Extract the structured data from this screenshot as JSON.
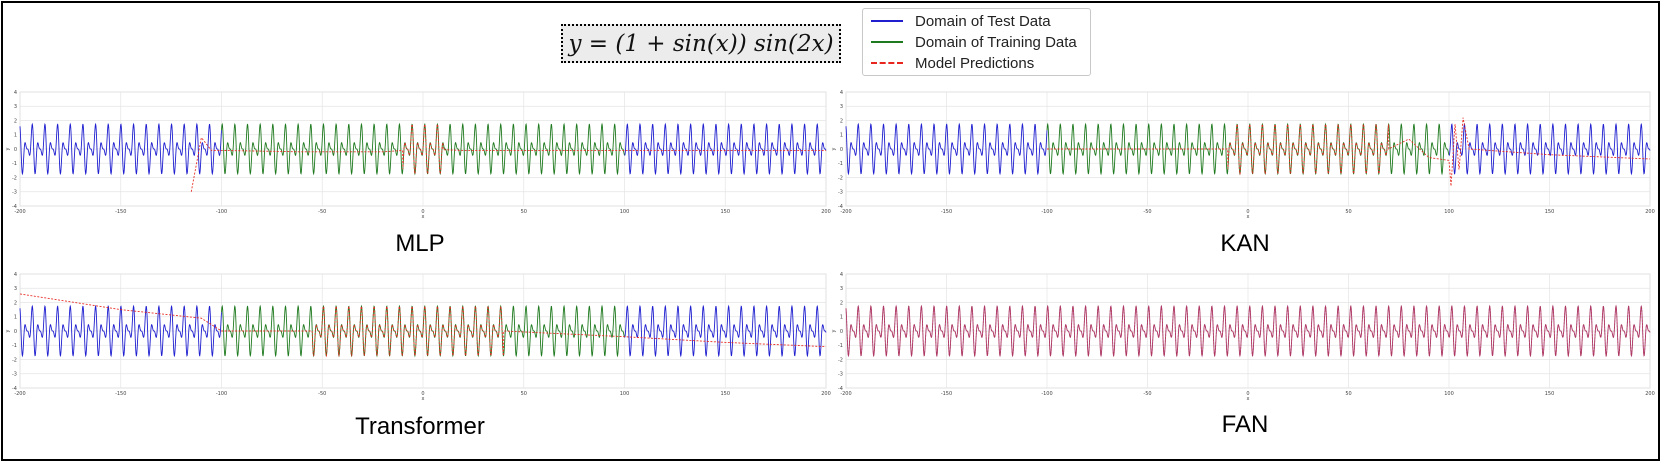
{
  "formula": "y = (1 + sin(x)) sin(2x)",
  "legend": {
    "items": [
      {
        "label": "Domain of Test Data",
        "color": "#1f1fd0",
        "style": "solid"
      },
      {
        "label": "Domain of Training Data",
        "color": "#1f7a1f",
        "style": "solid"
      },
      {
        "label": "Model Predictions",
        "color": "#e8261f",
        "style": "dashed"
      }
    ]
  },
  "chart_data": [
    {
      "type": "line",
      "title": "MLP",
      "xlabel": "x",
      "ylabel": "y",
      "xlim": [
        -200,
        200
      ],
      "ylim": [
        -4,
        4
      ],
      "x_ticks": [
        -200,
        -150,
        -100,
        -50,
        0,
        50,
        100,
        150,
        200
      ],
      "y_ticks": [
        4,
        3,
        2,
        1,
        0,
        -1,
        -2,
        -3,
        -4
      ],
      "train_domain": [
        -100,
        100
      ],
      "function": "(1+sin(x))*sin(2x)",
      "prediction": {
        "good_range": [
          -10,
          10
        ],
        "x": [
          -115,
          -110,
          -105,
          -100,
          -60,
          -20,
          0,
          20,
          60,
          100,
          150,
          200
        ],
        "y": [
          -3.0,
          0.8,
          -0.1,
          -0.1,
          -0.2,
          -0.2,
          0.0,
          -0.1,
          -0.1,
          -0.1,
          -0.1,
          -0.1
        ]
      }
    },
    {
      "type": "line",
      "title": "KAN",
      "xlabel": "x",
      "ylabel": "y",
      "xlim": [
        -200,
        200
      ],
      "ylim": [
        -4,
        4
      ],
      "x_ticks": [
        -200,
        -150,
        -100,
        -50,
        0,
        50,
        100,
        150,
        200
      ],
      "y_ticks": [
        4,
        3,
        2,
        1,
        0,
        -1,
        -2,
        -3,
        -4
      ],
      "train_domain": [
        -100,
        100
      ],
      "function": "(1+sin(x))*sin(2x)",
      "prediction": {
        "good_range": [
          -10,
          70
        ],
        "x": [
          70,
          80,
          90,
          100,
          101,
          103,
          105,
          107,
          110,
          150,
          200
        ],
        "y": [
          0.0,
          0.7,
          -0.6,
          -0.8,
          -2.6,
          1.8,
          -1.5,
          2.2,
          0.0,
          -0.4,
          -0.7
        ]
      }
    },
    {
      "type": "line",
      "title": "Transformer",
      "xlabel": "x",
      "ylabel": "y",
      "xlim": [
        -200,
        200
      ],
      "ylim": [
        -4,
        4
      ],
      "x_ticks": [
        -200,
        -150,
        -100,
        -50,
        0,
        50,
        100,
        150,
        200
      ],
      "y_ticks": [
        4,
        3,
        2,
        1,
        0,
        -1,
        -2,
        -3,
        -4
      ],
      "train_domain": [
        -100,
        100
      ],
      "function": "(1+sin(x))*sin(2x)",
      "prediction": {
        "good_range": [
          -55,
          40
        ],
        "x": [
          -200,
          -150,
          -110,
          -100,
          -55,
          40,
          100,
          150,
          200
        ],
        "y": [
          2.6,
          1.5,
          0.9,
          0.0,
          0.0,
          0.0,
          -0.4,
          -0.8,
          -1.1
        ]
      }
    },
    {
      "type": "line",
      "title": "FAN",
      "xlabel": "x",
      "ylabel": "y",
      "xlim": [
        -200,
        200
      ],
      "ylim": [
        -4,
        4
      ],
      "x_ticks": [
        -200,
        -150,
        -100,
        -50,
        0,
        50,
        100,
        150,
        200
      ],
      "y_ticks": [
        4,
        3,
        2,
        1,
        0,
        -1,
        -2,
        -3,
        -4
      ],
      "train_domain": [
        -100,
        100
      ],
      "function": "(1+sin(x))*sin(2x)",
      "prediction": {
        "good_range": [
          -200,
          200
        ],
        "x": [],
        "y": []
      }
    }
  ]
}
